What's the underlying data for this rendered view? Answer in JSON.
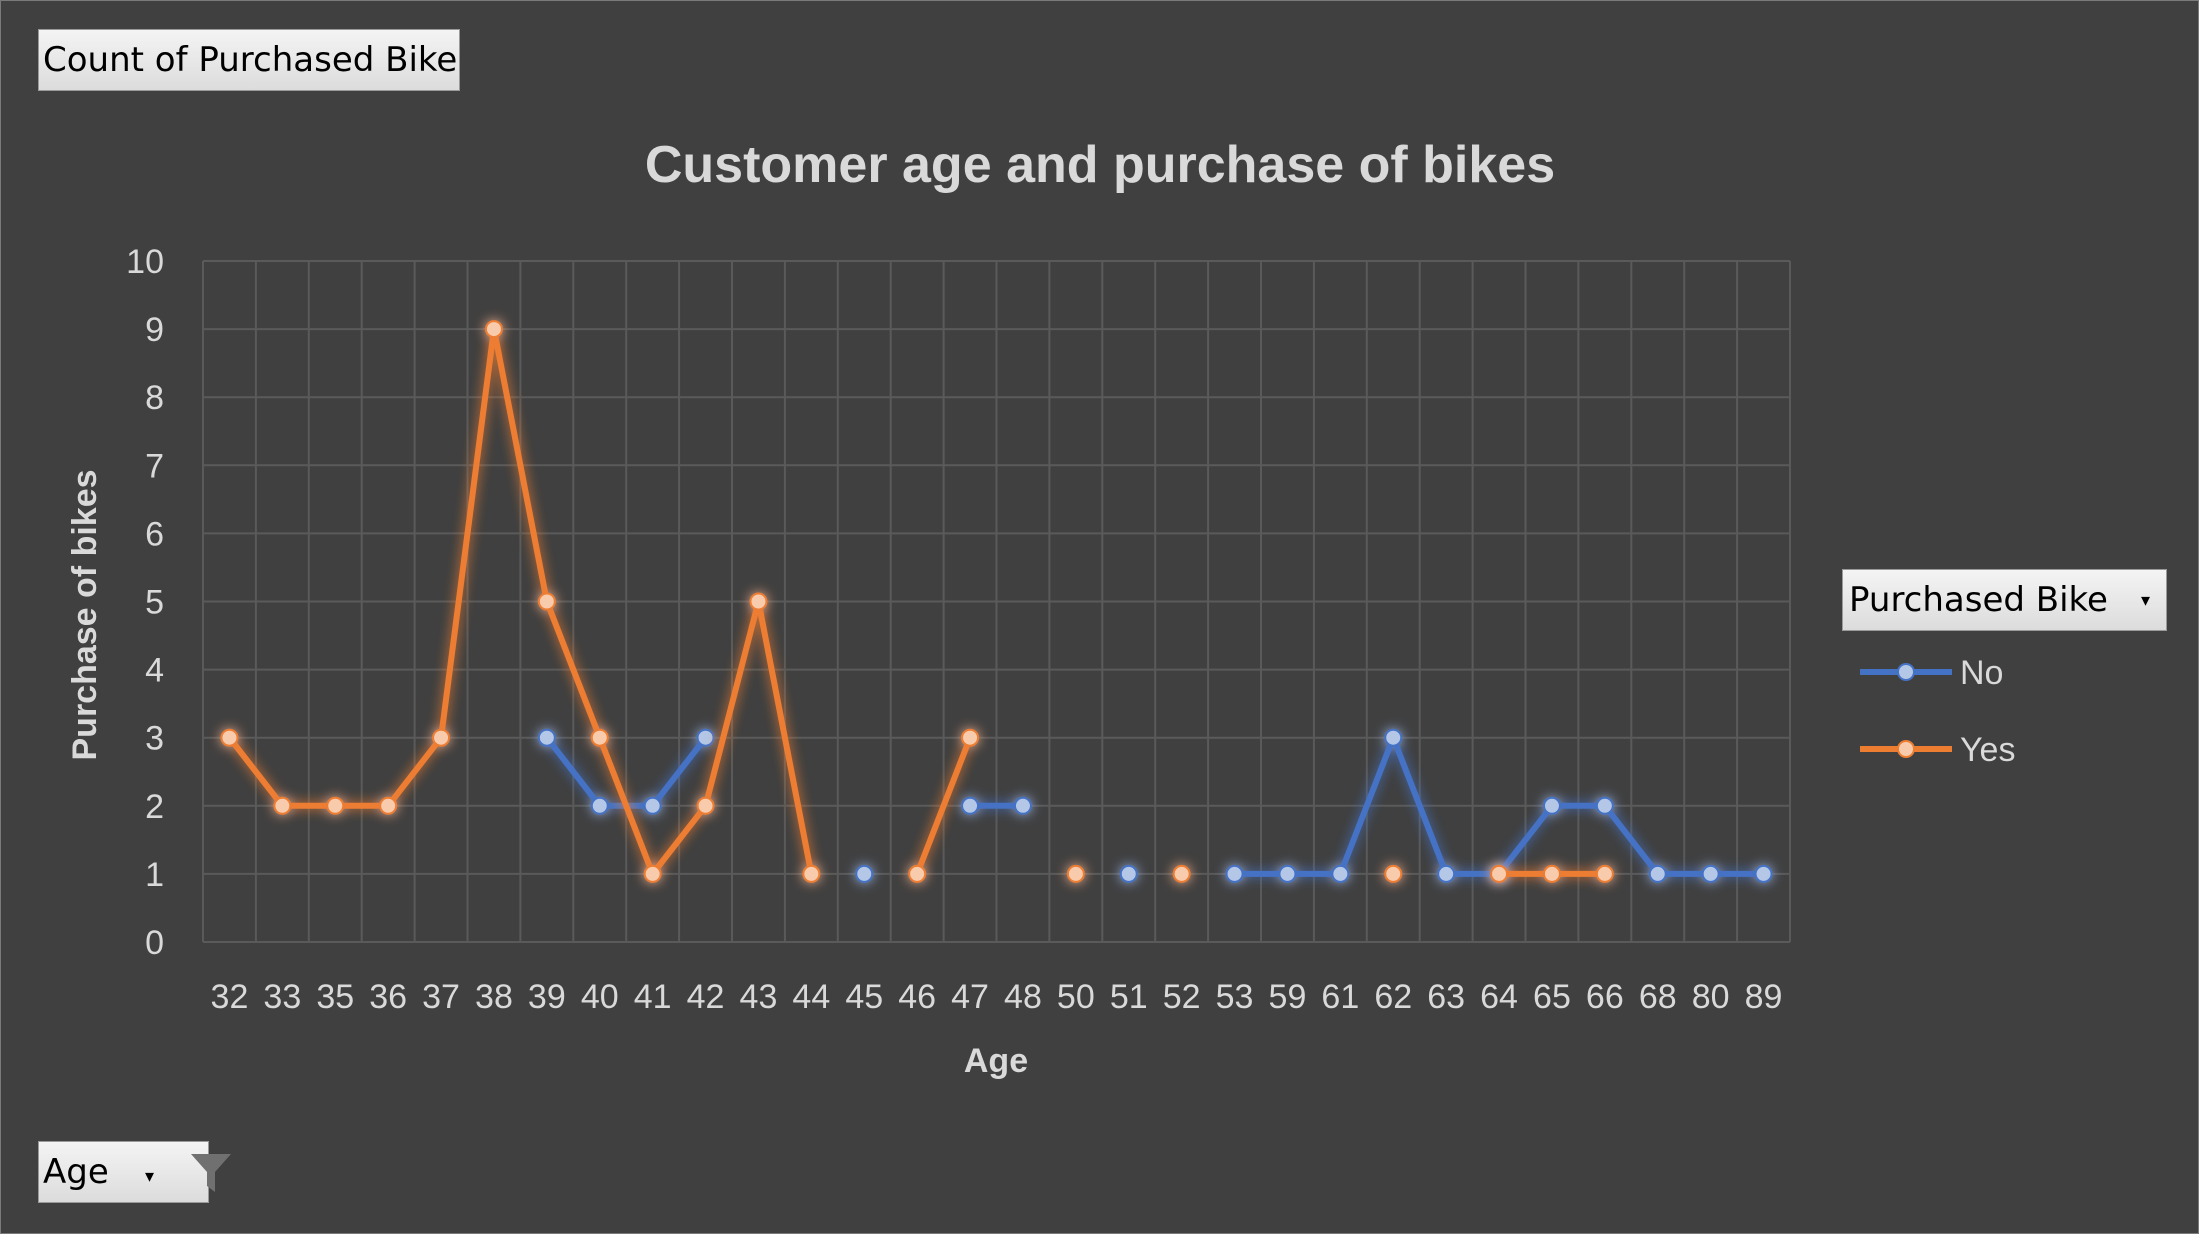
{
  "pivot": {
    "value_field_label": "Count of Purchased Bike",
    "axis_field_label": "Age",
    "legend_field_label": "Purchased Bike",
    "dropdown_icon": "dropdown-arrow-icon",
    "filter_icon": "funnel-filter-icon"
  },
  "colors": {
    "background": "#404040",
    "grid": "#5a5a5a",
    "text": "#d9d9d9",
    "no": "#4472c4",
    "yes": "#ed7d31"
  },
  "chart_data": {
    "type": "line",
    "title": "Customer age and purchase of bikes",
    "xlabel": "Age",
    "ylabel": "Purchase of bikes",
    "ylim": [
      0,
      10
    ],
    "yticks": [
      "0",
      "1",
      "2",
      "3",
      "4",
      "5",
      "6",
      "7",
      "8",
      "9",
      "10"
    ],
    "grid": true,
    "legend_position": "right",
    "categories": [
      "32",
      "33",
      "35",
      "36",
      "37",
      "38",
      "39",
      "40",
      "41",
      "42",
      "43",
      "44",
      "45",
      "46",
      "47",
      "48",
      "50",
      "51",
      "52",
      "53",
      "59",
      "61",
      "62",
      "63",
      "64",
      "65",
      "66",
      "68",
      "80",
      "89"
    ],
    "series": [
      {
        "name": "No",
        "color": "#4472c4",
        "values": [
          null,
          null,
          null,
          null,
          null,
          null,
          3,
          2,
          2,
          3,
          null,
          null,
          1,
          null,
          2,
          2,
          null,
          1,
          null,
          1,
          1,
          1,
          3,
          1,
          1,
          2,
          2,
          1,
          1,
          1
        ]
      },
      {
        "name": "Yes",
        "color": "#ed7d31",
        "values": [
          3,
          2,
          2,
          2,
          3,
          9,
          5,
          3,
          1,
          2,
          5,
          1,
          null,
          1,
          3,
          null,
          1,
          null,
          1,
          null,
          null,
          null,
          1,
          null,
          1,
          1,
          1,
          null,
          null,
          null
        ]
      }
    ]
  }
}
